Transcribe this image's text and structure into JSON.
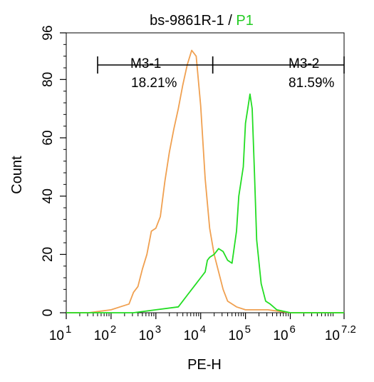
{
  "title": {
    "sample": "bs-9861R-1",
    "separator": " / ",
    "gate": "P1"
  },
  "colors": {
    "control": "#f0a050",
    "sample": "#22dd22",
    "gate_text": "#22cc22",
    "axis": "#000000"
  },
  "chart_data": {
    "type": "line",
    "xscale": "log10",
    "xlabel": "PE-H",
    "ylabel": "Count",
    "xlim": [
      1,
      7.2
    ],
    "ylim": [
      0,
      96
    ],
    "x_ticks": [
      {
        "base": "10",
        "exp": "1",
        "value": 1
      },
      {
        "base": "10",
        "exp": "2",
        "value": 2
      },
      {
        "base": "10",
        "exp": "3",
        "value": 3
      },
      {
        "base": "10",
        "exp": "4",
        "value": 4
      },
      {
        "base": "10",
        "exp": "5",
        "value": 5
      },
      {
        "base": "10",
        "exp": "6",
        "value": 6
      },
      {
        "base": "10",
        "exp": "7.2",
        "value": 7.2
      }
    ],
    "y_ticks": [
      "0",
      "20",
      "40",
      "60",
      "80",
      "96"
    ],
    "gates": [
      {
        "name": "M3-1",
        "percent": "18.21%",
        "x_range": [
          1.7,
          4.27
        ]
      },
      {
        "name": "M3-2",
        "percent": "81.59%",
        "x_range": [
          4.27,
          7.2
        ]
      }
    ],
    "series": [
      {
        "color": "#f0a050",
        "x_log10": [
          1.0,
          1.5,
          2.0,
          2.2,
          2.4,
          2.5,
          2.6,
          2.7,
          2.8,
          2.9,
          3.0,
          3.1,
          3.2,
          3.3,
          3.4,
          3.5,
          3.6,
          3.7,
          3.8,
          3.9,
          4.0,
          4.1,
          4.2,
          4.3,
          4.4,
          4.5,
          4.6,
          4.8,
          5.0,
          5.5,
          6.0,
          7.2
        ],
        "y": [
          0,
          0,
          1,
          2,
          3,
          7,
          9,
          15,
          20,
          28,
          29,
          33,
          45,
          55,
          63,
          70,
          78,
          85,
          90,
          88,
          71,
          46,
          29,
          20,
          14,
          8,
          4,
          2,
          1,
          1,
          0,
          0
        ]
      },
      {
        "color": "#22dd22",
        "x_log10": [
          1.0,
          2.5,
          3.0,
          3.5,
          3.7,
          3.9,
          4.0,
          4.1,
          4.15,
          4.2,
          4.3,
          4.4,
          4.5,
          4.6,
          4.7,
          4.8,
          4.85,
          4.95,
          5.0,
          5.05,
          5.1,
          5.15,
          5.2,
          5.25,
          5.35,
          5.45,
          5.55,
          5.7,
          6.0,
          7.2
        ],
        "y": [
          0,
          0,
          1,
          2,
          6,
          10,
          12,
          14,
          18,
          19,
          20,
          22,
          21,
          18,
          17,
          28,
          40,
          50,
          65,
          70,
          75,
          70,
          48,
          25,
          10,
          4,
          3,
          1,
          0,
          0
        ]
      }
    ]
  }
}
